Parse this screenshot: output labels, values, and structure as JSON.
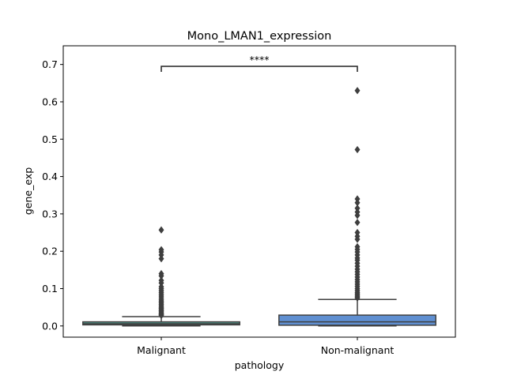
{
  "chart_data": {
    "type": "box",
    "title": "Mono_LMAN1_expression",
    "xlabel": "pathology",
    "ylabel": "gene_exp",
    "categories": [
      "Malignant",
      "Non-malignant"
    ],
    "ylim": [
      -0.03,
      0.75
    ],
    "yticks": [
      "0.0",
      "0.1",
      "0.2",
      "0.3",
      "0.4",
      "0.5",
      "0.6",
      "0.7"
    ],
    "grid": false,
    "boxes": [
      {
        "name": "Malignant",
        "color": "#4f9a8f",
        "whislo": 0.0,
        "q1": 0.003,
        "med": 0.006,
        "q3": 0.011,
        "whishi": 0.025,
        "fliers": [
          0.257,
          0.204,
          0.198,
          0.19,
          0.18,
          0.14,
          0.134,
          0.122,
          0.115,
          0.105,
          0.1,
          0.095,
          0.09,
          0.085,
          0.08,
          0.075,
          0.07,
          0.066,
          0.062,
          0.058,
          0.054,
          0.05,
          0.047,
          0.044,
          0.041,
          0.038,
          0.035,
          0.032,
          0.03,
          0.028
        ]
      },
      {
        "name": "Non-malignant",
        "color": "#5f8fd1",
        "whislo": 0.0,
        "q1": 0.002,
        "med": 0.011,
        "q3": 0.029,
        "whishi": 0.071,
        "fliers": [
          0.63,
          0.472,
          0.34,
          0.33,
          0.315,
          0.305,
          0.296,
          0.277,
          0.25,
          0.24,
          0.232,
          0.212,
          0.205,
          0.198,
          0.19,
          0.182,
          0.176,
          0.168,
          0.16,
          0.152,
          0.145,
          0.138,
          0.131,
          0.124,
          0.118,
          0.112,
          0.106,
          0.1,
          0.095,
          0.09,
          0.086,
          0.082,
          0.078,
          0.075
        ]
      }
    ],
    "annotations": [
      {
        "text": "****",
        "between": [
          "Malignant",
          "Non-malignant"
        ],
        "y": 0.695
      }
    ]
  }
}
